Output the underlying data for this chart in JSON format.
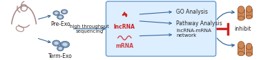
{
  "bg_color": "#ffffff",
  "box_color": "#ddeeff",
  "box_edge_color": "#6699cc",
  "arrow_color": "#336699",
  "lncrna_color": "#cc2222",
  "mrna_color": "#cc4444",
  "text_color_dark": "#222222",
  "exo_fill": "#7799bb",
  "exo_edge": "#445577",
  "inhibit_bar_color": "#cc2222",
  "mother_color": "#aa8888",
  "intestine_color": "#cc8855",
  "intestine_edge": "#884422",
  "labels": {
    "pre_exo": "Pre-Exo",
    "term_exo": "Term-Exo",
    "sequencing": "high throughput\nsequencing",
    "lncrna": "lncRNA",
    "mrna": "mRNA",
    "go": "GO Analysis",
    "pathway": "Pathway Analysis",
    "network": "lncRNA-mRNA\nnetwork",
    "inhibit": "inhibit"
  },
  "font_size": 5.5
}
